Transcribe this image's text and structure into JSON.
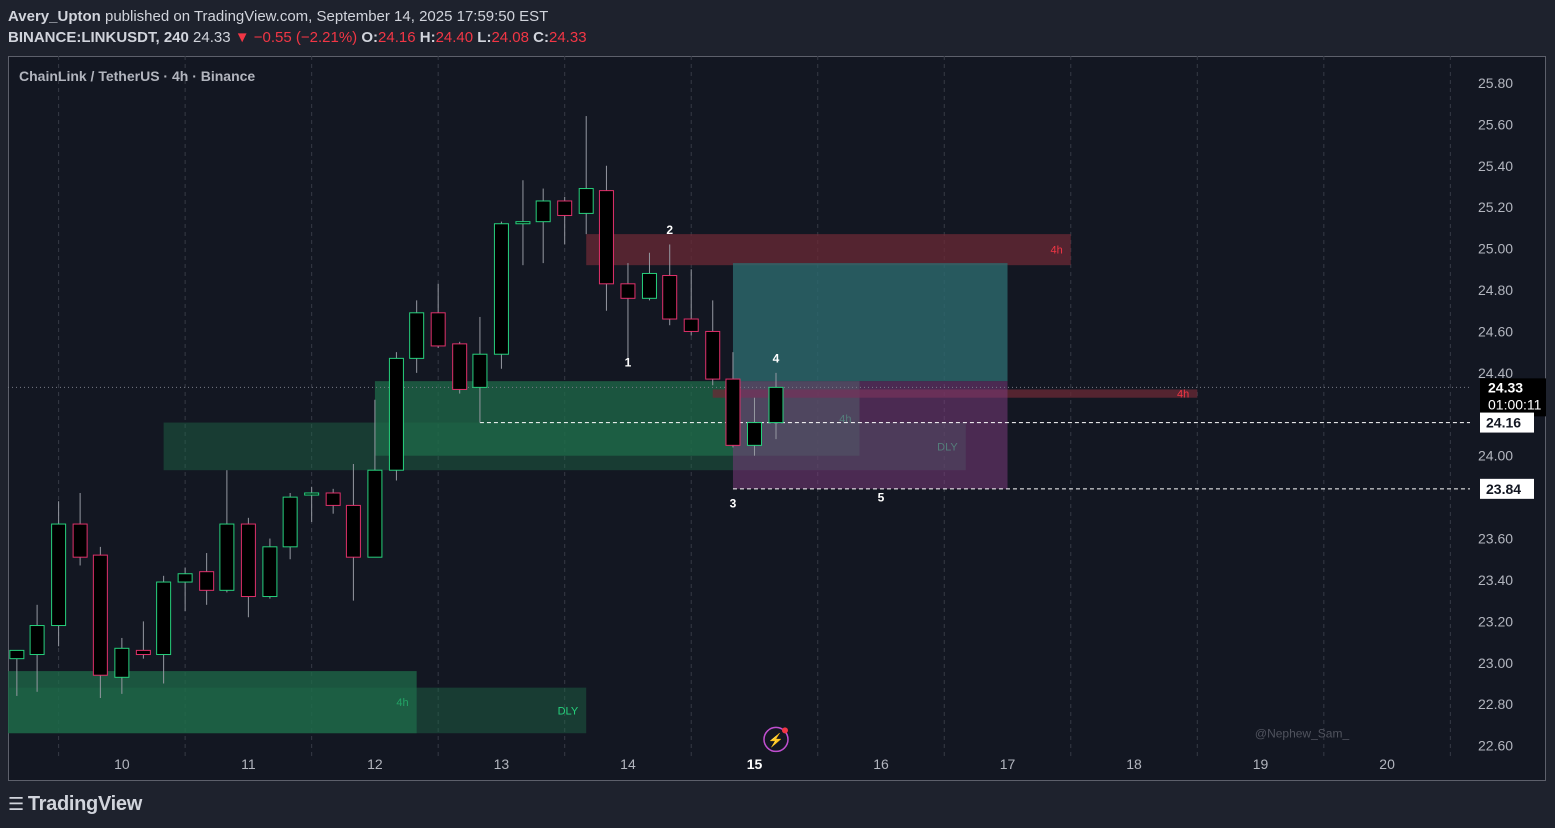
{
  "header": {
    "author": "Avery_Upton",
    "published_text": "published on TradingView.com, September 14, 2025 17:59:50 EST",
    "symbol": "BINANCE:LINKUSDT, 240",
    "last": "24.33",
    "change": "▼ −0.55 (−2.21%)",
    "o_label": "O:",
    "o_val": "24.16",
    "h_label": "H:",
    "h_val": "24.40",
    "l_label": "L:",
    "l_val": "24.08",
    "c_label": "C:",
    "c_val": "24.33"
  },
  "chart_title": "ChainLink / TetherUS · 4h · Binance",
  "footer": {
    "logo_text": "TradingView"
  },
  "colors": {
    "up": "#26d07c",
    "down": "#e0306a",
    "bg": "#131722",
    "grid": "#363a45",
    "demand_zone": "#1f6b4a",
    "supply_zone": "#6b2a36",
    "target_zone": "#2d6a6e",
    "stop_zone": "#7a3a7a"
  },
  "chart_data": {
    "type": "candlestick",
    "title": "ChainLink / TetherUS · 4h · Binance",
    "timeframe": "4h",
    "x_tick_labels": [
      "10",
      "11",
      "12",
      "13",
      "14",
      "15",
      "16",
      "17",
      "18",
      "19",
      "20"
    ],
    "x_tick_days": [
      10,
      11,
      12,
      13,
      14,
      15,
      16,
      17,
      18,
      19,
      20
    ],
    "y_tick_labels": [
      "25.80",
      "25.60",
      "25.40",
      "25.20",
      "25.00",
      "24.80",
      "24.60",
      "24.40",
      "24.00",
      "23.60",
      "23.40",
      "23.20",
      "23.00",
      "22.80",
      "22.60"
    ],
    "ylim": [
      22.55,
      25.93
    ],
    "xlim": [
      9.1,
      20.6
    ],
    "grid": "vertical dashed",
    "candles": [
      {
        "t": 9.17,
        "o": 23.02,
        "h": 23.05,
        "l": 22.84,
        "c": 23.06
      },
      {
        "t": 9.33,
        "o": 23.04,
        "h": 23.28,
        "l": 22.86,
        "c": 23.18
      },
      {
        "t": 9.5,
        "o": 23.18,
        "h": 23.78,
        "l": 23.08,
        "c": 23.67
      },
      {
        "t": 9.67,
        "o": 23.67,
        "h": 23.82,
        "l": 23.47,
        "c": 23.51
      },
      {
        "t": 9.83,
        "o": 23.52,
        "h": 23.56,
        "l": 22.83,
        "c": 22.94
      },
      {
        "t": 10.0,
        "o": 22.93,
        "h": 23.12,
        "l": 22.85,
        "c": 23.07
      },
      {
        "t": 10.17,
        "o": 23.06,
        "h": 23.2,
        "l": 23.02,
        "c": 23.04
      },
      {
        "t": 10.33,
        "o": 23.04,
        "h": 23.42,
        "l": 22.9,
        "c": 23.39
      },
      {
        "t": 10.5,
        "o": 23.39,
        "h": 23.46,
        "l": 23.25,
        "c": 23.43
      },
      {
        "t": 10.67,
        "o": 23.44,
        "h": 23.53,
        "l": 23.28,
        "c": 23.35
      },
      {
        "t": 10.83,
        "o": 23.35,
        "h": 23.93,
        "l": 23.34,
        "c": 23.67
      },
      {
        "t": 11.0,
        "o": 23.67,
        "h": 23.7,
        "l": 23.22,
        "c": 23.32
      },
      {
        "t": 11.17,
        "o": 23.32,
        "h": 23.6,
        "l": 23.31,
        "c": 23.56
      },
      {
        "t": 11.33,
        "o": 23.56,
        "h": 23.82,
        "l": 23.5,
        "c": 23.8
      },
      {
        "t": 11.5,
        "o": 23.81,
        "h": 23.85,
        "l": 23.68,
        "c": 23.82
      },
      {
        "t": 11.67,
        "o": 23.82,
        "h": 23.84,
        "l": 23.72,
        "c": 23.76
      },
      {
        "t": 11.83,
        "o": 23.76,
        "h": 23.96,
        "l": 23.3,
        "c": 23.51
      },
      {
        "t": 12.0,
        "o": 23.51,
        "h": 24.27,
        "l": 23.51,
        "c": 23.93
      },
      {
        "t": 12.17,
        "o": 23.93,
        "h": 24.5,
        "l": 23.88,
        "c": 24.47
      },
      {
        "t": 12.33,
        "o": 24.47,
        "h": 24.75,
        "l": 24.4,
        "c": 24.69
      },
      {
        "t": 12.5,
        "o": 24.69,
        "h": 24.83,
        "l": 24.52,
        "c": 24.53
      },
      {
        "t": 12.67,
        "o": 24.54,
        "h": 24.55,
        "l": 24.3,
        "c": 24.32
      },
      {
        "t": 12.83,
        "o": 24.33,
        "h": 24.67,
        "l": 24.16,
        "c": 24.49
      },
      {
        "t": 13.0,
        "o": 24.49,
        "h": 25.13,
        "l": 24.42,
        "c": 25.12
      },
      {
        "t": 13.17,
        "o": 25.12,
        "h": 25.33,
        "l": 24.92,
        "c": 25.13
      },
      {
        "t": 13.33,
        "o": 25.13,
        "h": 25.29,
        "l": 24.93,
        "c": 25.23
      },
      {
        "t": 13.5,
        "o": 25.23,
        "h": 25.25,
        "l": 25.02,
        "c": 25.16
      },
      {
        "t": 13.67,
        "o": 25.17,
        "h": 25.64,
        "l": 25.07,
        "c": 25.29
      },
      {
        "t": 13.83,
        "o": 25.28,
        "h": 25.4,
        "l": 24.7,
        "c": 24.83
      },
      {
        "t": 14.0,
        "o": 24.83,
        "h": 24.93,
        "l": 24.45,
        "c": 24.76
      },
      {
        "t": 14.17,
        "o": 24.76,
        "h": 24.98,
        "l": 24.75,
        "c": 24.88
      },
      {
        "t": 14.33,
        "o": 24.87,
        "h": 25.02,
        "l": 24.63,
        "c": 24.66
      },
      {
        "t": 14.5,
        "o": 24.66,
        "h": 24.9,
        "l": 24.58,
        "c": 24.6
      },
      {
        "t": 14.67,
        "o": 24.6,
        "h": 24.75,
        "l": 24.34,
        "c": 24.37
      },
      {
        "t": 14.83,
        "o": 24.37,
        "h": 24.5,
        "l": 24.04,
        "c": 24.05
      },
      {
        "t": 15.0,
        "o": 24.05,
        "h": 24.28,
        "l": 24.0,
        "c": 24.16
      },
      {
        "t": 15.17,
        "o": 24.16,
        "h": 24.4,
        "l": 24.08,
        "c": 24.33
      }
    ],
    "zones": [
      {
        "label": "4h",
        "kind": "demand",
        "t0": 12.0,
        "t1": 15.83,
        "p0": 24.0,
        "p1": 24.36
      },
      {
        "label": "DLY",
        "kind": "demand",
        "t0": 10.33,
        "t1": 16.67,
        "p0": 23.93,
        "p1": 24.16
      },
      {
        "label": "4h",
        "kind": "supply",
        "t0": 13.67,
        "t1": 17.5,
        "p0": 24.92,
        "p1": 25.07
      },
      {
        "label": "4h",
        "kind": "supply",
        "t0": 14.67,
        "t1": 18.5,
        "p0": 24.28,
        "p1": 24.32
      },
      {
        "label": "4h",
        "kind": "demand",
        "t0": 9.1,
        "t1": 12.33,
        "p0": 22.66,
        "p1": 22.96
      },
      {
        "label": "DLY",
        "kind": "demand",
        "t0": 9.1,
        "t1": 13.67,
        "p0": 22.66,
        "p1": 22.88
      }
    ],
    "position": {
      "entry": 24.36,
      "target": 24.93,
      "stop": 23.84,
      "t0": 14.83,
      "t1": 17.0
    },
    "wave_labels": [
      {
        "label": "1",
        "t": 14.0,
        "p": 24.43
      },
      {
        "label": "2",
        "t": 14.33,
        "p": 25.07
      },
      {
        "label": "3",
        "t": 14.83,
        "p": 23.75
      },
      {
        "label": "4",
        "t": 15.17,
        "p": 24.45
      },
      {
        "label": "5",
        "t": 16.0,
        "p": 23.78
      }
    ],
    "price_lines": [
      {
        "label": "24.16",
        "p": 24.16,
        "t0": 12.83
      },
      {
        "label": "23.84",
        "p": 23.84,
        "t0": 14.83
      }
    ],
    "current_price": {
      "label": "24.33",
      "countdown": "01:00:11",
      "p": 24.33
    },
    "watermark": "@Nephew_Sam_"
  }
}
